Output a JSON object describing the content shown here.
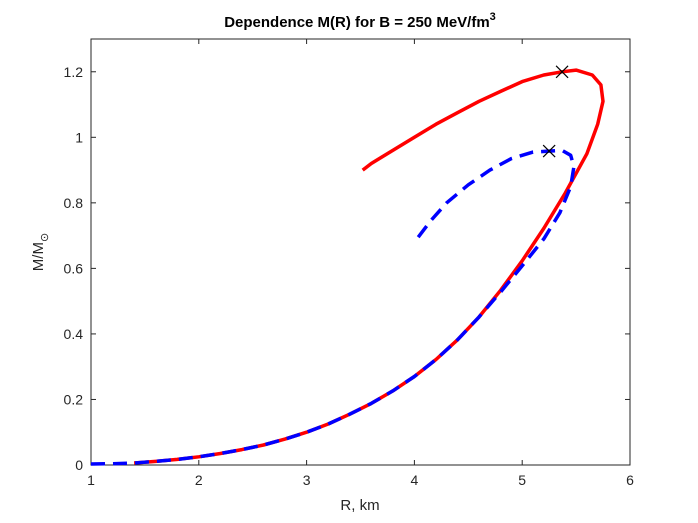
{
  "chart_data": {
    "type": "line",
    "title": {
      "main": "Dependence M(R) for B = 250 MeV/fm",
      "superscript": "3"
    },
    "xlabel": "R, km",
    "ylabel": {
      "base": "M/M",
      "subscript": "⊙"
    },
    "xlim": [
      1,
      6
    ],
    "ylim": [
      0,
      1.3
    ],
    "xticks": [
      1,
      2,
      3,
      4,
      5,
      6
    ],
    "yticks": [
      0,
      0.2,
      0.4,
      0.6,
      0.8,
      1,
      1.2
    ],
    "xtick_labels": [
      "1",
      "2",
      "3",
      "4",
      "5",
      "6"
    ],
    "ytick_labels": [
      "0",
      "0.2",
      "0.4",
      "0.6",
      "0.8",
      "1",
      "1.2"
    ],
    "grid": false,
    "legend": "none",
    "series": [
      {
        "color": "#ff0000",
        "line_style": "solid",
        "points": [
          [
            1.4,
            0.006
          ],
          [
            1.6,
            0.011
          ],
          [
            1.8,
            0.017
          ],
          [
            2.0,
            0.025
          ],
          [
            2.2,
            0.035
          ],
          [
            2.4,
            0.047
          ],
          [
            2.6,
            0.061
          ],
          [
            2.8,
            0.079
          ],
          [
            3.0,
            0.1
          ],
          [
            3.2,
            0.125
          ],
          [
            3.4,
            0.155
          ],
          [
            3.6,
            0.188
          ],
          [
            3.8,
            0.226
          ],
          [
            4.0,
            0.27
          ],
          [
            4.2,
            0.322
          ],
          [
            4.4,
            0.382
          ],
          [
            4.6,
            0.452
          ],
          [
            4.8,
            0.533
          ],
          [
            5.0,
            0.623
          ],
          [
            5.2,
            0.722
          ],
          [
            5.4,
            0.83
          ],
          [
            5.6,
            0.95
          ],
          [
            5.7,
            1.04
          ],
          [
            5.75,
            1.11
          ],
          [
            5.73,
            1.16
          ],
          [
            5.65,
            1.19
          ],
          [
            5.5,
            1.205
          ],
          [
            5.37,
            1.2
          ],
          [
            5.2,
            1.19
          ],
          [
            5.0,
            1.17
          ],
          [
            4.8,
            1.14
          ],
          [
            4.6,
            1.11
          ],
          [
            4.4,
            1.075
          ],
          [
            4.2,
            1.04
          ],
          [
            4.0,
            1.0
          ],
          [
            3.8,
            0.96
          ],
          [
            3.6,
            0.92
          ],
          [
            3.52,
            0.9
          ]
        ]
      },
      {
        "color": "#0000ff",
        "line_style": "dashed",
        "points": [
          [
            1.0,
            0.003
          ],
          [
            1.2,
            0.004
          ],
          [
            1.4,
            0.006
          ],
          [
            1.6,
            0.011
          ],
          [
            1.8,
            0.017
          ],
          [
            2.0,
            0.025
          ],
          [
            2.2,
            0.035
          ],
          [
            2.4,
            0.047
          ],
          [
            2.6,
            0.061
          ],
          [
            2.8,
            0.079
          ],
          [
            3.0,
            0.1
          ],
          [
            3.2,
            0.125
          ],
          [
            3.4,
            0.155
          ],
          [
            3.6,
            0.188
          ],
          [
            3.8,
            0.226
          ],
          [
            4.0,
            0.27
          ],
          [
            4.2,
            0.322
          ],
          [
            4.4,
            0.382
          ],
          [
            4.6,
            0.452
          ],
          [
            4.8,
            0.528
          ],
          [
            5.0,
            0.608
          ],
          [
            5.2,
            0.69
          ],
          [
            5.35,
            0.77
          ],
          [
            5.45,
            0.85
          ],
          [
            5.48,
            0.91
          ],
          [
            5.45,
            0.945
          ],
          [
            5.37,
            0.96
          ],
          [
            5.25,
            0.958
          ],
          [
            5.1,
            0.955
          ],
          [
            4.9,
            0.935
          ],
          [
            4.7,
            0.9
          ],
          [
            4.5,
            0.855
          ],
          [
            4.3,
            0.8
          ],
          [
            4.15,
            0.745
          ],
          [
            4.0,
            0.68
          ]
        ]
      }
    ],
    "markers": [
      {
        "symbol": "x",
        "x": 5.37,
        "y": 1.2,
        "color": "#000000"
      },
      {
        "symbol": "x",
        "x": 5.25,
        "y": 0.958,
        "color": "#000000"
      }
    ]
  }
}
